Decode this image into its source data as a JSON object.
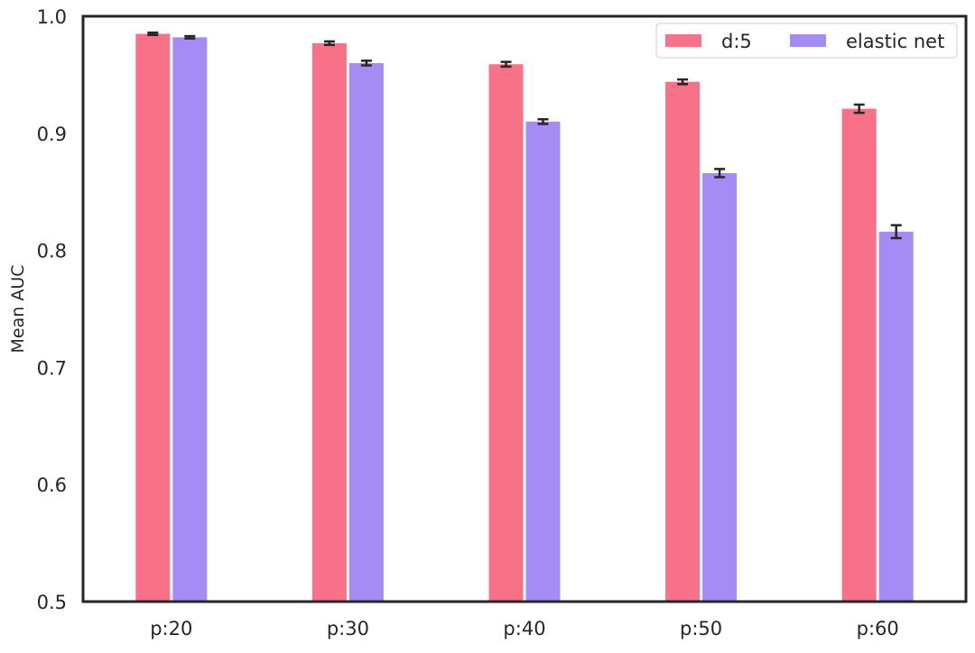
{
  "chart_data": {
    "type": "bar",
    "title": "",
    "xlabel": "",
    "ylabel": "Mean AUC",
    "ylim": [
      0.5,
      1.0
    ],
    "yticks": [
      "0.5",
      "0.6",
      "0.7",
      "0.8",
      "0.9",
      "1.0"
    ],
    "categories": [
      "p:20",
      "p:30",
      "p:40",
      "p:50",
      "p:60"
    ],
    "series": [
      {
        "name": "d:5",
        "color": "#f77189",
        "values": [
          0.985,
          0.977,
          0.959,
          0.944,
          0.921
        ],
        "errors": [
          0.001,
          0.0015,
          0.002,
          0.002,
          0.0035
        ]
      },
      {
        "name": "elastic net",
        "color": "#a48cf4",
        "values": [
          0.982,
          0.96,
          0.91,
          0.866,
          0.816
        ],
        "errors": [
          0.001,
          0.002,
          0.002,
          0.0035,
          0.0055
        ]
      }
    ],
    "grid": false,
    "legend_position": "top-right",
    "legend_columns": 2
  }
}
